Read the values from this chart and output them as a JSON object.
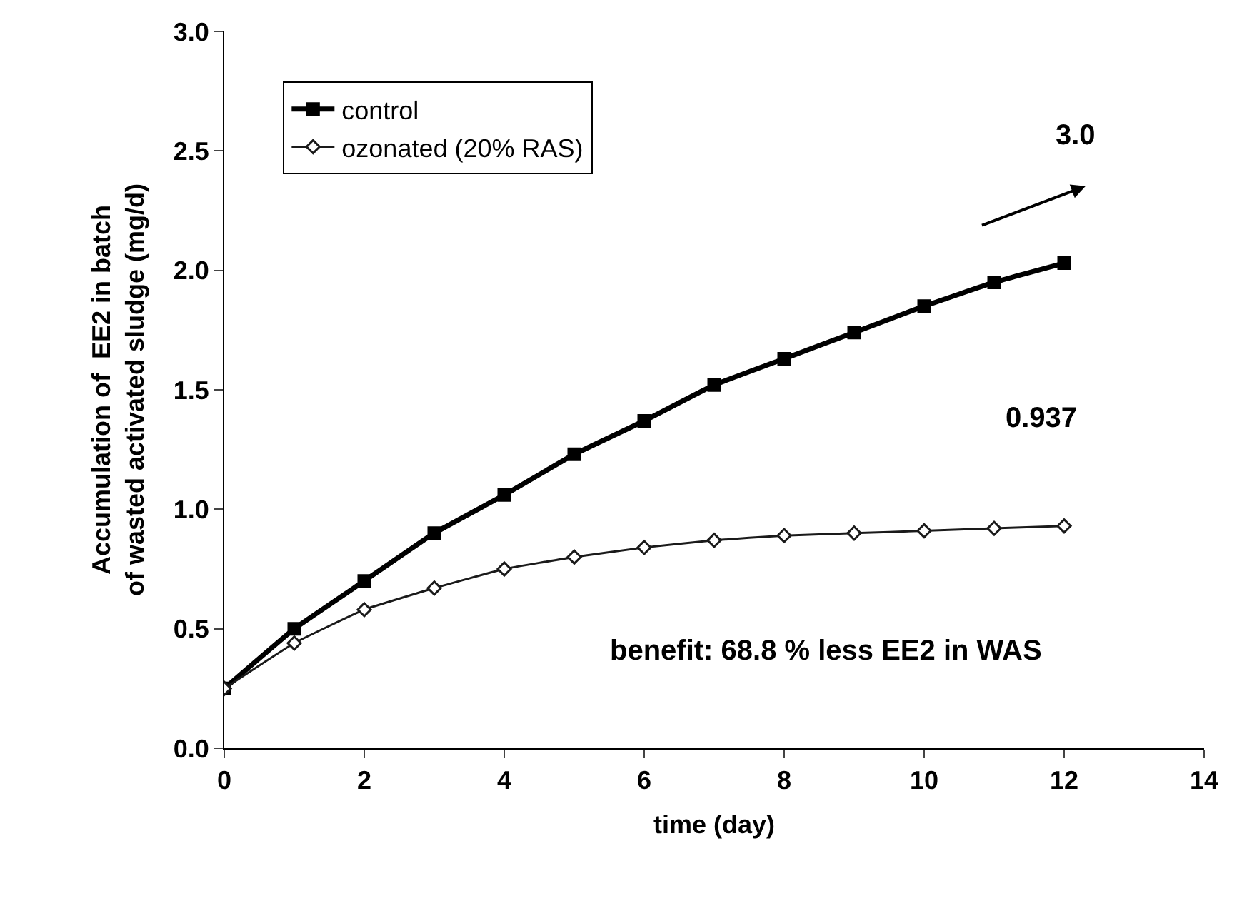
{
  "chart_data": {
    "type": "line",
    "xlabel": "time (day)",
    "ylabel": "Accumulation of  EE2 in batch\nof wasted activated sludge (mg/d)",
    "x": [
      0,
      1,
      2,
      3,
      4,
      5,
      6,
      7,
      8,
      9,
      10,
      11,
      12
    ],
    "series": [
      {
        "name": "control",
        "color": "#000000",
        "marker": "square",
        "values": [
          0.25,
          0.5,
          0.7,
          0.9,
          1.06,
          1.23,
          1.37,
          1.52,
          1.63,
          1.74,
          1.85,
          1.95,
          2.03
        ]
      },
      {
        "name": "ozonated (20% RAS)",
        "color": "#1a1a1a",
        "marker": "diamond",
        "values": [
          0.25,
          0.44,
          0.58,
          0.67,
          0.75,
          0.8,
          0.84,
          0.87,
          0.89,
          0.9,
          0.91,
          0.92,
          0.93
        ]
      }
    ],
    "xlim": [
      0,
      14
    ],
    "xticks": [
      0,
      2,
      4,
      6,
      8,
      10,
      12,
      14
    ],
    "ylim": [
      0,
      3
    ],
    "yticks": [
      {
        "value": 0,
        "label": "0.0"
      },
      {
        "value": 0.5,
        "label": "0.5"
      },
      {
        "value": 1,
        "label": "1.0"
      },
      {
        "value": 1.5,
        "label": "1.5"
      },
      {
        "value": 2,
        "label": "2.0"
      },
      {
        "value": 2.5,
        "label": "2.5"
      },
      {
        "value": 3,
        "label": "3.0"
      }
    ],
    "legend": "top left",
    "annotations": [
      "3.0",
      "0.937",
      "benefit: 68.8 % less EE2 in WAS"
    ]
  }
}
